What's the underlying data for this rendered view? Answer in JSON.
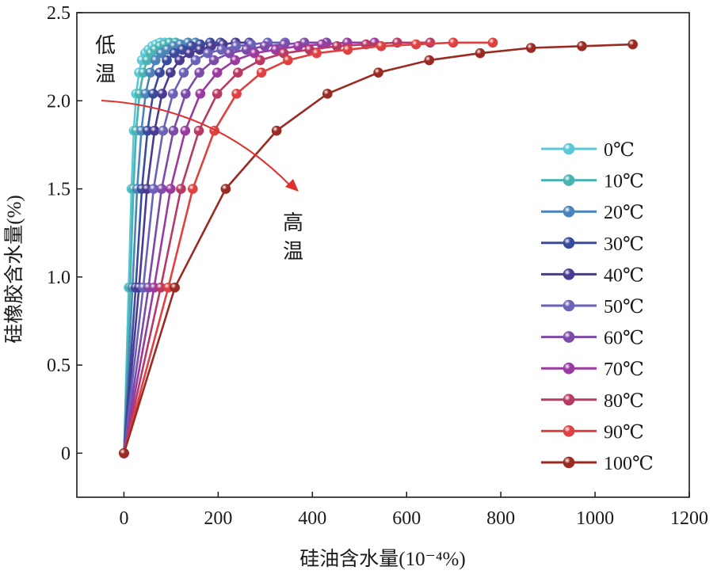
{
  "chart_data": {
    "type": "line",
    "title": "",
    "xlabel": "硅油含水量(10⁻⁴%)",
    "ylabel": "硅橡胶含水量(%)",
    "xlim": [
      -100,
      1200
    ],
    "ylim": [
      -0.25,
      2.5
    ],
    "x_ticks": [
      "0",
      "200",
      "400",
      "600",
      "800",
      "1000",
      "1200"
    ],
    "y_ticks": [
      "0",
      "0.5",
      "1.0",
      "1.5",
      "2.0",
      "2.5"
    ],
    "grid": false,
    "legend_position": "right",
    "annotations": {
      "low_temp": [
        "低",
        "温"
      ],
      "high_temp": [
        "高",
        "温"
      ]
    },
    "series": [
      {
        "name": "0℃",
        "color": "#5bc8d8",
        "x": [
          0,
          10,
          16,
          21,
          26,
          32,
          38,
          45,
          52,
          60,
          68,
          77,
          87
        ],
        "y": [
          0,
          0.94,
          1.5,
          1.83,
          2.04,
          2.16,
          2.23,
          2.27,
          2.29,
          2.31,
          2.32,
          2.33,
          2.33
        ]
      },
      {
        "name": "10℃",
        "color": "#48b3b0",
        "x": [
          0,
          13,
          20,
          26,
          33,
          41,
          49,
          57,
          66,
          76,
          86,
          97,
          110
        ],
        "y": [
          0,
          0.94,
          1.5,
          1.83,
          2.04,
          2.16,
          2.23,
          2.27,
          2.29,
          2.31,
          2.32,
          2.33,
          2.33
        ]
      },
      {
        "name": "20℃",
        "color": "#4b84b8",
        "x": [
          0,
          18,
          28,
          37,
          46,
          56,
          67,
          79,
          92,
          106,
          120,
          136,
          152
        ],
        "y": [
          0,
          0.94,
          1.5,
          1.83,
          2.04,
          2.16,
          2.23,
          2.27,
          2.29,
          2.31,
          2.32,
          2.33,
          2.33
        ]
      },
      {
        "name": "30℃",
        "color": "#3a4a9c",
        "x": [
          0,
          25,
          38,
          50,
          62,
          76,
          91,
          107,
          124,
          143,
          162,
          183,
          205
        ],
        "y": [
          0,
          0.94,
          1.5,
          1.83,
          2.04,
          2.16,
          2.23,
          2.27,
          2.29,
          2.31,
          2.32,
          2.33,
          2.33
        ]
      },
      {
        "name": "40℃",
        "color": "#4a3a92",
        "x": [
          0,
          32,
          49,
          65,
          81,
          99,
          118,
          139,
          161,
          185,
          210,
          237,
          266
        ],
        "y": [
          0,
          0.94,
          1.5,
          1.83,
          2.04,
          2.16,
          2.23,
          2.27,
          2.29,
          2.31,
          2.32,
          2.33,
          2.33
        ]
      },
      {
        "name": "50℃",
        "color": "#6a62b8",
        "x": [
          0,
          41,
          63,
          83,
          104,
          127,
          152,
          178,
          207,
          238,
          270,
          305,
          342
        ],
        "y": [
          0,
          0.94,
          1.5,
          1.83,
          2.04,
          2.16,
          2.23,
          2.27,
          2.29,
          2.31,
          2.32,
          2.33,
          2.33
        ]
      },
      {
        "name": "60℃",
        "color": "#7c4aa8",
        "x": [
          0,
          52,
          80,
          105,
          131,
          160,
          191,
          224,
          260,
          299,
          340,
          383,
          430
        ],
        "y": [
          0,
          0.94,
          1.5,
          1.83,
          2.04,
          2.16,
          2.23,
          2.27,
          2.29,
          2.31,
          2.32,
          2.33,
          2.33
        ]
      },
      {
        "name": "70℃",
        "color": "#9a3aa0",
        "x": [
          0,
          64,
          99,
          130,
          162,
          198,
          236,
          277,
          322,
          370,
          420,
          474,
          532
        ],
        "y": [
          0,
          0.94,
          1.5,
          1.83,
          2.04,
          2.16,
          2.23,
          2.27,
          2.29,
          2.31,
          2.32,
          2.33,
          2.33
        ]
      },
      {
        "name": "80℃",
        "color": "#b83a64",
        "x": [
          0,
          78,
          121,
          159,
          198,
          242,
          289,
          339,
          394,
          452,
          514,
          580,
          650
        ],
        "y": [
          0,
          0.94,
          1.5,
          1.83,
          2.04,
          2.16,
          2.23,
          2.27,
          2.29,
          2.31,
          2.32,
          2.33,
          2.33
        ]
      },
      {
        "name": "90℃",
        "color": "#e04040",
        "x": [
          0,
          94,
          146,
          192,
          239,
          292,
          348,
          409,
          475,
          546,
          620,
          699,
          783
        ],
        "y": [
          0,
          0.94,
          1.5,
          1.83,
          2.04,
          2.16,
          2.23,
          2.27,
          2.29,
          2.31,
          2.32,
          2.33,
          2.33
        ]
      },
      {
        "name": "100℃",
        "color": "#9a2a22",
        "x": [
          0,
          108,
          216,
          324,
          432,
          540,
          648,
          756,
          864,
          972,
          1080
        ],
        "y": [
          0,
          0.94,
          1.5,
          1.83,
          2.04,
          2.16,
          2.23,
          2.27,
          2.3,
          2.31,
          2.32
        ]
      }
    ]
  }
}
